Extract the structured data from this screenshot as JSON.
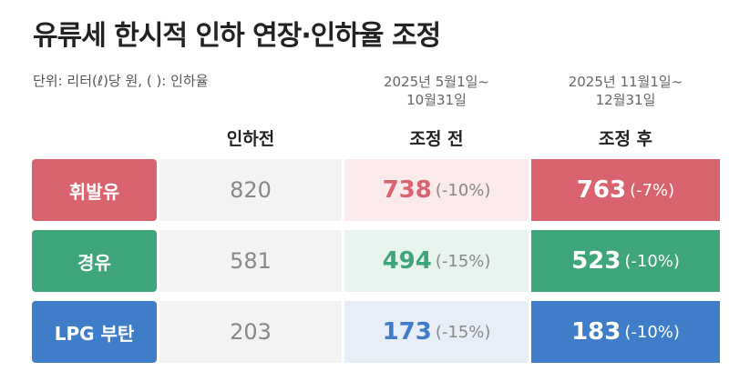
{
  "header": {
    "title": "유류세 한시적 인하 연장·인하율 조정",
    "unit": "단위: 리터(ℓ)당 원, ( ): 인하율"
  },
  "table": {
    "columns": [
      {
        "period": [],
        "label": "인하전"
      },
      {
        "period": [
          "2025년 5월1일~",
          "10월31일"
        ],
        "label": "조정 전"
      },
      {
        "period": [
          "2025년 11월1일~",
          "12월31일"
        ],
        "label": "조정 후"
      }
    ],
    "rows": [
      {
        "label": "휘발유",
        "color": "#d9636f",
        "tint": "#fbeaec",
        "values": [
          820,
          738,
          763
        ],
        "rates": [
          null,
          "(-10%)",
          "(-7%)"
        ]
      },
      {
        "label": "경유",
        "color": "#3fa57a",
        "tint": "#e7f4ed",
        "values": [
          581,
          494,
          523
        ],
        "rates": [
          null,
          "(-15%)",
          "(-10%)"
        ]
      },
      {
        "label": "LPG 부탄",
        "color": "#3f7dc8",
        "tint": "#e8eef8",
        "values": [
          203,
          173,
          183
        ],
        "rates": [
          null,
          "(-15%)",
          "(-10%)"
        ]
      }
    ]
  }
}
